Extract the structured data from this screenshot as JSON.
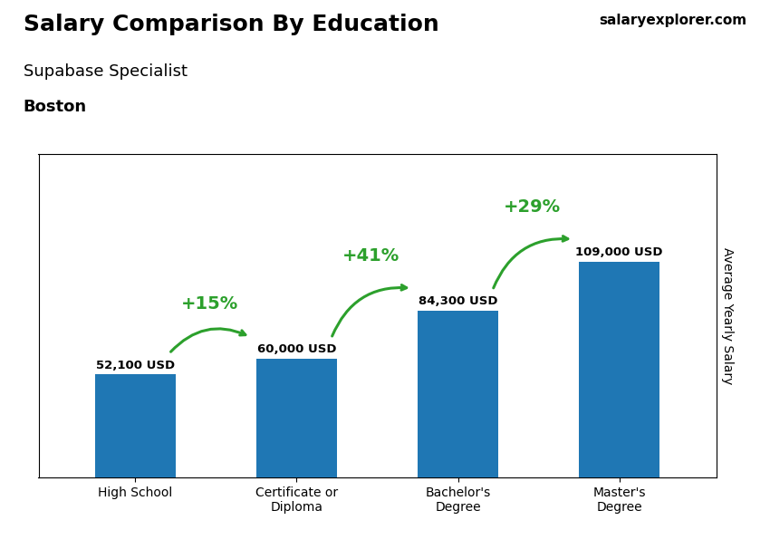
{
  "chart_data": {
    "type": "bar",
    "title": "Salary Comparison By Education",
    "subtitle": "Supabase Specialist",
    "y_label": "Average Yearly Salary",
    "categories": [
      "High School",
      "Certificate or\nDiploma",
      "Bachelor's\nDegree",
      "Master's\nDegree"
    ],
    "values": [
      52100,
      60000,
      84300,
      109000
    ],
    "value_labels": [
      "52,100 USD",
      "60,000 USD",
      "84,300 USD",
      "109,000 USD"
    ],
    "data_labels": true,
    "ylim": [
      0,
      163500
    ],
    "yticks": [],
    "tick_labels": "x",
    "grid": false,
    "annotations": [
      {
        "text": "Boston"
      },
      {
        "text": "salaryexplorer.com"
      },
      {
        "text": "+15%",
        "from": "High School",
        "to": "Certificate or\nDiploma"
      },
      {
        "text": "+41%",
        "from": "Certificate or\nDiploma",
        "to": "Bachelor's\nDegree"
      },
      {
        "text": "+29%",
        "from": "Bachelor's\nDegree",
        "to": "Master's\nDegree"
      }
    ]
  }
}
